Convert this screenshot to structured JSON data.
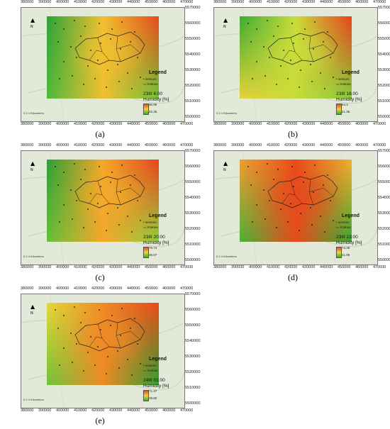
{
  "map": {
    "x_ticks": [
      "380000",
      "390000",
      "400000",
      "410000",
      "420000",
      "430000",
      "440000",
      "450000",
      "460000",
      "470000"
    ],
    "y_ticks": [
      "5570000",
      "5560000",
      "5550000",
      "5540000",
      "5530000",
      "5520000",
      "5510000",
      "5500000"
    ],
    "scale_text": "0 2 4 Kilometers",
    "legend_title": "Legend",
    "sensors_label": "sensors",
    "krakow_label": "Krakow",
    "humidity_label": "Humidity [%]"
  },
  "panels": [
    {
      "caption": "(a)",
      "time": "23III 6:00",
      "max": "90.95",
      "min": "42.26",
      "colors": {
        "tl": "#2aa23a",
        "tr": "#e84a1c",
        "bl": "#4fba3a",
        "br": "#6fc43a",
        "c": "#f0c030"
      }
    },
    {
      "caption": "(b)",
      "time": "23III 16:00",
      "max": "64.4",
      "min": "41.36",
      "colors": {
        "tl": "#3aab34",
        "tr": "#e8421c",
        "bl": "#e4d238",
        "br": "#86cc3c",
        "c": "#c9dc3a"
      }
    },
    {
      "caption": "(c)",
      "time": "23III 20:00",
      "max": "79.74",
      "min": "36.07",
      "colors": {
        "tl": "#2d9e36",
        "tr": "#e8421c",
        "bl": "#66c03a",
        "br": "#8fd040",
        "c": "#f4a82a"
      }
    },
    {
      "caption": "(d)",
      "time": "23III 23:00",
      "max": "73.38",
      "min": "41.86",
      "colors": {
        "tl": "#f0a030",
        "tr": "#f0b030",
        "bl": "#48b438",
        "br": "#3aab34",
        "c": "#e84a1c"
      }
    },
    {
      "caption": "(e)",
      "time": "24III 01:00",
      "max": "71.37",
      "min": "39.85",
      "colors": {
        "tl": "#e6d838",
        "tr": "#e84a1c",
        "bl": "#6cc43a",
        "br": "#2da232",
        "c": "#f08a26"
      }
    }
  ]
}
